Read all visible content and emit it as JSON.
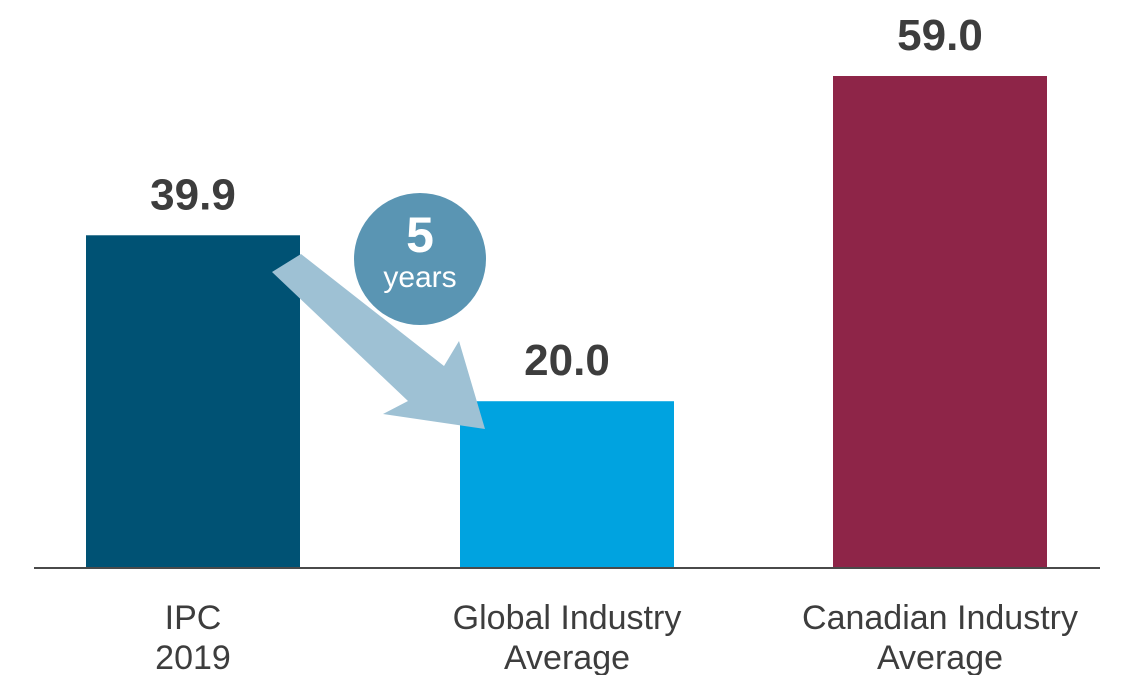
{
  "chart_data": {
    "type": "bar",
    "categories": [
      [
        "IPC",
        "2019"
      ],
      [
        "Global Industry",
        "Average"
      ],
      [
        "Canadian Industry",
        "Average"
      ]
    ],
    "values": [
      39.9,
      20.0,
      59.0
    ],
    "value_labels": [
      "39.9",
      "20.0",
      "59.0"
    ],
    "colors": [
      "#005274",
      "#00a3e0",
      "#8e2548"
    ],
    "ylim": [
      0,
      59
    ],
    "title": "",
    "xlabel": "",
    "ylabel": "",
    "grid": false,
    "annotation": {
      "number": "5",
      "unit": "years",
      "from_category": "IPC 2019",
      "to_category": "Global Industry Average"
    }
  },
  "colors": {
    "arrow": "#9ec1d4",
    "badge": "#5a95b3",
    "baseline": "#4a4a4a"
  }
}
